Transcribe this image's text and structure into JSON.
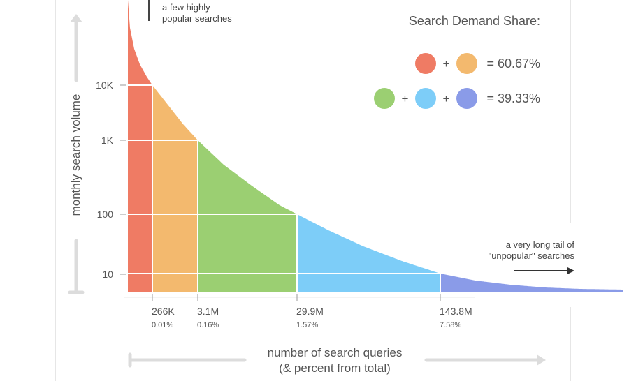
{
  "chart_data": {
    "type": "area",
    "title": "Search Demand Share:",
    "ylabel": "monthly search volume",
    "xlabel_line1": "number of search queries",
    "xlabel_line2": "(& percent from total)",
    "y_scale": "log",
    "y_ticks": [
      {
        "value": 10000,
        "label": "10K"
      },
      {
        "value": 1000,
        "label": "1K"
      },
      {
        "value": 100,
        "label": "100"
      },
      {
        "value": 10,
        "label": "10"
      }
    ],
    "x_ticks": [
      {
        "label": "266K",
        "pct": "0.01%"
      },
      {
        "label": "3.1M",
        "pct": "0.16%"
      },
      {
        "label": "29.9M",
        "pct": "1.57%"
      },
      {
        "label": "143.8M",
        "pct": "7.58%"
      }
    ],
    "segments": [
      {
        "color": "#ef7b64"
      },
      {
        "color": "#f3b96e"
      },
      {
        "color": "#9bcf72"
      },
      {
        "color": "#7dcdf8"
      },
      {
        "color": "#8a9be8"
      }
    ],
    "legend": [
      {
        "colors": [
          "#ef7b64",
          "#f3b96e"
        ],
        "value": "= 60.67%"
      },
      {
        "colors": [
          "#9bcf72",
          "#7dcdf8",
          "#8a9be8"
        ],
        "value": "= 39.33%"
      }
    ],
    "annotation_head": [
      "a few highly",
      "popular searches"
    ],
    "annotation_tail": [
      "a very long tail of",
      "\"unpopular\" searches"
    ],
    "plus_sign": "+"
  }
}
